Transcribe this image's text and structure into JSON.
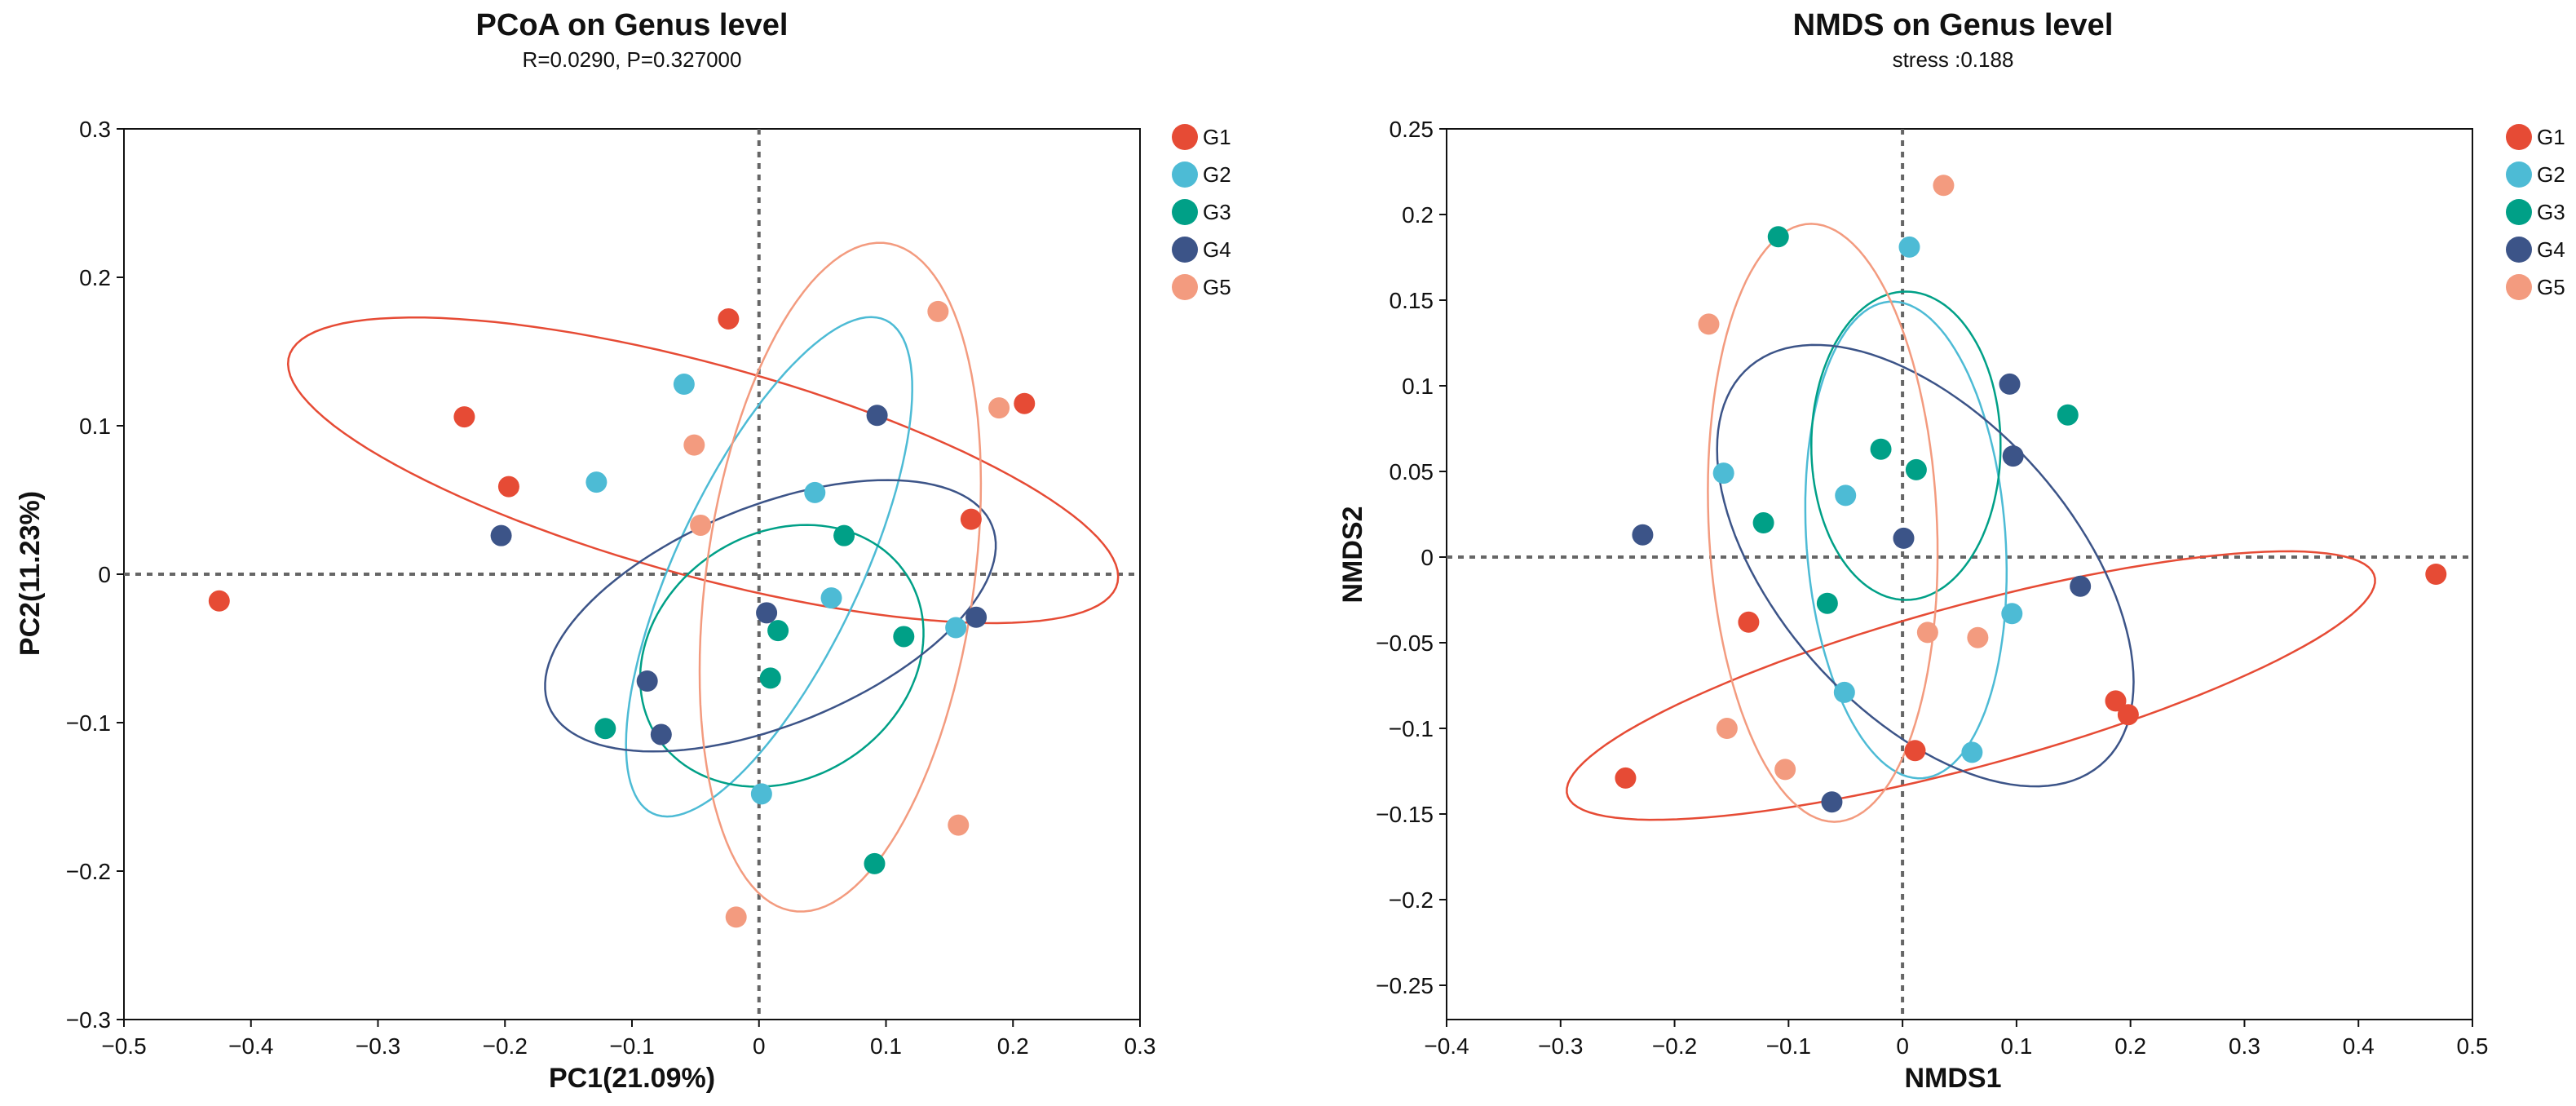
{
  "chart_data": [
    {
      "type": "scatter",
      "title": "PCoA on Genus level",
      "subtitle": "R=0.0290, P=0.327000",
      "xlabel": "PC1(21.09%)",
      "ylabel": "PC2(11.23%)",
      "xlim": [
        -0.5,
        0.3
      ],
      "ylim": [
        -0.3,
        0.3
      ],
      "xticks": [
        -0.5,
        -0.4,
        -0.3,
        -0.2,
        -0.1,
        0,
        0.1,
        0.2,
        0.3
      ],
      "yticks": [
        -0.3,
        -0.2,
        -0.1,
        0,
        0.1,
        0.2,
        0.3
      ],
      "xtick_labels": [
        "−0.5",
        "−0.4",
        "−0.3",
        "−0.2",
        "−0.1",
        "0",
        "0.1",
        "0.2",
        "0.3"
      ],
      "ytick_labels": [
        "−0.3",
        "−0.2",
        "−0.1",
        "0",
        "0.1",
        "0.2",
        "0.3"
      ],
      "legend_position": "top-right",
      "series": [
        {
          "name": "G1",
          "color": "#E64B35",
          "points": [
            [
              -0.425,
              -0.018
            ],
            [
              -0.232,
              0.106
            ],
            [
              -0.197,
              0.059
            ],
            [
              -0.024,
              0.172
            ],
            [
              0.167,
              0.037
            ],
            [
              0.209,
              0.115
            ]
          ],
          "ellipse": {
            "cx": -0.044,
            "cy": 0.07,
            "rx": 0.335,
            "ry": 0.072,
            "angle": -13
          }
        },
        {
          "name": "G2",
          "color": "#4DBBD5",
          "points": [
            [
              -0.128,
              0.062
            ],
            [
              -0.059,
              0.128
            ],
            [
              0.044,
              0.055
            ],
            [
              0.057,
              -0.016
            ],
            [
              0.155,
              -0.036
            ],
            [
              0.002,
              -0.148
            ]
          ],
          "ellipse": {
            "cx": 0.008,
            "cy": 0.005,
            "rx": 0.07,
            "ry": 0.19,
            "angle": -30
          }
        },
        {
          "name": "G3",
          "color": "#00A087",
          "points": [
            [
              -0.121,
              -0.104
            ],
            [
              0.009,
              -0.07
            ],
            [
              0.015,
              -0.038
            ],
            [
              0.067,
              0.026
            ],
            [
              0.114,
              -0.042
            ],
            [
              0.091,
              -0.195
            ]
          ],
          "ellipse": {
            "cx": 0.018,
            "cy": -0.055,
            "rx": 0.114,
            "ry": 0.085,
            "angle": 18
          }
        },
        {
          "name": "G4",
          "color": "#3C5488",
          "points": [
            [
              -0.203,
              0.026
            ],
            [
              -0.088,
              -0.072
            ],
            [
              -0.077,
              -0.108
            ],
            [
              0.006,
              -0.026
            ],
            [
              0.093,
              0.107
            ],
            [
              0.171,
              -0.029
            ]
          ],
          "ellipse": {
            "cx": 0.009,
            "cy": -0.028,
            "rx": 0.185,
            "ry": 0.075,
            "angle": 18
          }
        },
        {
          "name": "G5",
          "color": "#F39B7F",
          "points": [
            [
              -0.046,
              0.033
            ],
            [
              -0.051,
              0.087
            ],
            [
              0.141,
              0.177
            ],
            [
              0.189,
              0.112
            ],
            [
              0.157,
              -0.169
            ],
            [
              -0.018,
              -0.231
            ]
          ],
          "ellipse": {
            "cx": 0.064,
            "cy": -0.002,
            "rx": 0.228,
            "ry": 0.105,
            "angle": 80
          }
        }
      ]
    },
    {
      "type": "scatter",
      "title": "NMDS on Genus level",
      "subtitle": "stress :0.188",
      "xlabel": "NMDS1",
      "ylabel": "NMDS2",
      "xlim": [
        -0.4,
        0.5
      ],
      "ylim": [
        -0.27,
        0.25
      ],
      "xticks": [
        -0.4,
        -0.3,
        -0.2,
        -0.1,
        0,
        0.1,
        0.2,
        0.3,
        0.4,
        0.5
      ],
      "yticks": [
        -0.25,
        -0.2,
        -0.15,
        -0.1,
        -0.05,
        0,
        0.05,
        0.1,
        0.15,
        0.2,
        0.25
      ],
      "xtick_labels": [
        "−0.4",
        "−0.3",
        "−0.2",
        "−0.1",
        "0",
        "0.1",
        "0.2",
        "0.3",
        "0.4",
        "0.5"
      ],
      "ytick_labels": [
        "−0.25",
        "−0.2",
        "−0.15",
        "−0.1",
        "−0.05",
        "0",
        "0.05",
        "0.1",
        "0.15",
        "0.2",
        "0.25"
      ],
      "legend_position": "top-right",
      "series": [
        {
          "name": "G1",
          "color": "#E64B35",
          "points": [
            [
              -0.243,
              -0.129
            ],
            [
              -0.135,
              -0.038
            ],
            [
              0.011,
              -0.113
            ],
            [
              0.187,
              -0.084
            ],
            [
              0.198,
              -0.092
            ],
            [
              0.468,
              -0.01
            ]
          ],
          "ellipse": {
            "cx": 0.06,
            "cy": -0.075,
            "rx": 0.36,
            "ry": 0.048,
            "angle": 10
          }
        },
        {
          "name": "G2",
          "color": "#4DBBD5",
          "points": [
            [
              -0.157,
              0.049
            ],
            [
              -0.05,
              0.036
            ],
            [
              0.006,
              0.181
            ],
            [
              0.096,
              -0.033
            ],
            [
              0.061,
              -0.114
            ],
            [
              -0.051,
              -0.079
            ]
          ],
          "ellipse": {
            "cx": 0.003,
            "cy": 0.01,
            "rx": 0.087,
            "ry": 0.14,
            "angle": 8
          }
        },
        {
          "name": "G3",
          "color": "#00A087",
          "points": [
            [
              -0.109,
              0.187
            ],
            [
              -0.019,
              0.063
            ],
            [
              0.012,
              0.051
            ],
            [
              0.145,
              0.083
            ],
            [
              -0.122,
              0.02
            ],
            [
              -0.066,
              -0.027
            ]
          ],
          "ellipse": {
            "cx": 0.003,
            "cy": 0.065,
            "rx": 0.083,
            "ry": 0.09,
            "angle": 0
          }
        },
        {
          "name": "G4",
          "color": "#3C5488",
          "points": [
            [
              -0.228,
              0.013
            ],
            [
              0.001,
              0.011
            ],
            [
              0.094,
              0.101
            ],
            [
              0.097,
              0.059
            ],
            [
              0.156,
              -0.017
            ],
            [
              -0.062,
              -0.143
            ]
          ],
          "ellipse": {
            "cx": 0.02,
            "cy": -0.005,
            "rx": 0.2,
            "ry": 0.1,
            "angle": -28
          }
        },
        {
          "name": "G5",
          "color": "#F39B7F",
          "points": [
            [
              -0.17,
              0.136
            ],
            [
              -0.154,
              -0.1
            ],
            [
              -0.103,
              -0.124
            ],
            [
              0.022,
              -0.044
            ],
            [
              0.066,
              -0.047
            ],
            [
              0.036,
              0.217
            ]
          ],
          "ellipse": {
            "cx": -0.07,
            "cy": 0.02,
            "rx": 0.1,
            "ry": 0.175,
            "angle": 5
          }
        }
      ]
    }
  ]
}
